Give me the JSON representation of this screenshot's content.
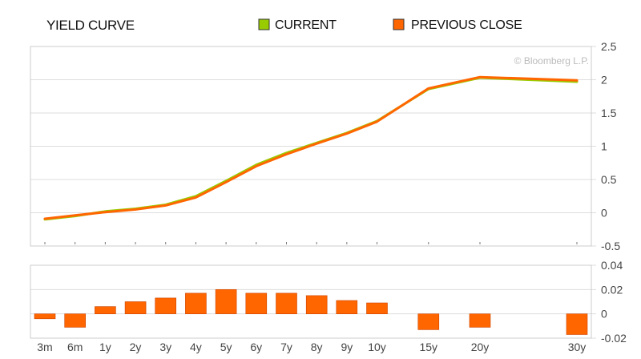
{
  "chart_data": [
    {
      "type": "line",
      "title": "YIELD CURVE",
      "watermark": "© Bloomberg L.P.",
      "categories": [
        "3m",
        "6m",
        "1y",
        "2y",
        "3y",
        "4y",
        "5y",
        "6y",
        "7y",
        "8y",
        "9y",
        "10y",
        "15y",
        "20y",
        "30y"
      ],
      "maturity_years": [
        0.25,
        0.5,
        1,
        2,
        3,
        4,
        5,
        6,
        7,
        8,
        9,
        10,
        15,
        20,
        30
      ],
      "series": [
        {
          "name": "CURRENT",
          "color": "#99cc00",
          "values": [
            -0.1,
            -0.05,
            0.02,
            0.06,
            0.12,
            0.25,
            0.48,
            0.72,
            0.9,
            1.05,
            1.2,
            1.38,
            1.86,
            2.03,
            1.97
          ]
        },
        {
          "name": "PREVIOUS CLOSE",
          "color": "#ff6600",
          "values": [
            -0.09,
            -0.04,
            0.01,
            0.05,
            0.11,
            0.23,
            0.46,
            0.7,
            0.88,
            1.04,
            1.19,
            1.37,
            1.87,
            2.04,
            1.99
          ]
        }
      ],
      "ylim": [
        -0.5,
        2.5
      ],
      "yticks": [
        "2.5",
        "2",
        "1.5",
        "1",
        "0.5",
        "0",
        "-0.5"
      ],
      "grid": true,
      "legend": "top"
    },
    {
      "type": "bar",
      "categories": [
        "3m",
        "6m",
        "1y",
        "2y",
        "3y",
        "4y",
        "5y",
        "6y",
        "7y",
        "8y",
        "9y",
        "10y",
        "15y",
        "20y",
        "30y"
      ],
      "values": [
        -0.004,
        -0.011,
        0.006,
        0.01,
        0.013,
        0.017,
        0.02,
        0.017,
        0.017,
        0.015,
        0.011,
        0.009,
        -0.013,
        -0.011,
        -0.017
      ],
      "color": "#ff6600",
      "ylim": [
        -0.02,
        0.04
      ],
      "yticks": [
        "0.04",
        "0.02",
        "0",
        "-0.02"
      ],
      "xticks": [
        "3m",
        "6m",
        "1y",
        "2y",
        "3y",
        "4y",
        "5y",
        "6y",
        "7y",
        "8y",
        "9y",
        "10y",
        "15y",
        "20y",
        "30y"
      ],
      "grid": true
    }
  ]
}
